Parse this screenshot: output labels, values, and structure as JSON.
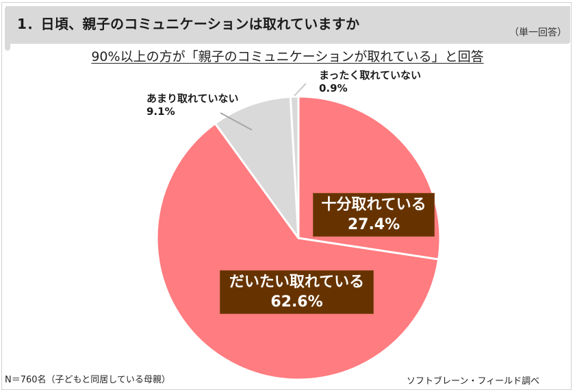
{
  "header": {
    "title": "1．日頃、親子のコミュニケーションは取れていますか",
    "answer_type": "（単一回答）"
  },
  "subtitle": "90%以上の方が「親子のコミュニケーションが取れている」と回答",
  "labels": {
    "fully": {
      "name": "十分取れている",
      "value": "27.4%"
    },
    "mostly": {
      "name": "だいたい取れている",
      "value": "62.6%"
    },
    "not_much": {
      "name": "あまり取れていない",
      "value": "9.1%"
    },
    "not_at_all": {
      "name": "まったく取れていない",
      "value": "0.9%"
    }
  },
  "footer": {
    "sample": "N＝760名（子どもと同居している母親）",
    "source": "ソフトブレーン・フィールド調べ"
  },
  "colors": {
    "positive": "#ff7c80",
    "negative": "#d9d9d9",
    "label_box": "#663300",
    "header_bg": "#d9d9d9"
  },
  "chart_data": {
    "type": "pie",
    "title": "1．日頃、親子のコミュニケーションは取れていますか",
    "subtitle": "90%以上の方が「親子のコミュニケーションが取れている」と回答",
    "categories": [
      "十分取れている",
      "だいたい取れている",
      "あまり取れていない",
      "まったく取れていない"
    ],
    "values": [
      27.4,
      62.6,
      9.1,
      0.9
    ],
    "unit": "%",
    "start_angle": "12 o'clock, clockwise",
    "colors": [
      "#ff7c80",
      "#ff7c80",
      "#d9d9d9",
      "#d9d9d9"
    ],
    "n": 760,
    "note": "N＝760名（子どもと同居している母親）",
    "source": "ソフトブレーン・フィールド調べ",
    "legend": "none (data labels)"
  }
}
